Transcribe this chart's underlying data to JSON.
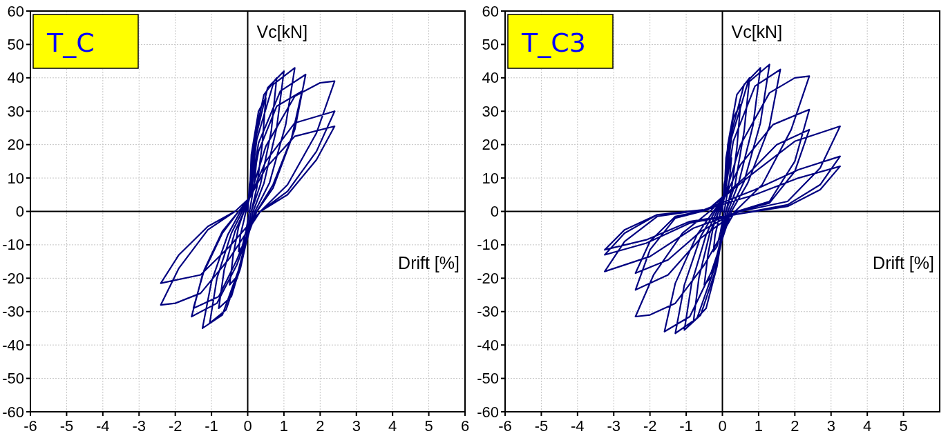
{
  "chart_data": [
    {
      "type": "line",
      "title": "T_C",
      "xlabel": "Drift [%]",
      "ylabel": "Vc[kN]",
      "xlim": [
        -6,
        6
      ],
      "ylim": [
        -60,
        60
      ],
      "xticks": [
        -6,
        -5,
        -4,
        -3,
        -2,
        -1,
        0,
        1,
        2,
        3,
        4,
        5,
        6
      ],
      "yticks": [
        -60,
        -50,
        -40,
        -30,
        -20,
        -10,
        0,
        10,
        20,
        30,
        40,
        50,
        60
      ],
      "grid": true,
      "series": [
        {
          "color": "#000080",
          "x": [
            0,
            0.05,
            0.15,
            0.25,
            0.2,
            0.1,
            0.05,
            -0.05,
            -0.15,
            -0.25,
            -0.2,
            -0.1,
            -0.05,
            0.05,
            0.1,
            0.3,
            0.5,
            0.4,
            0.25,
            0.1,
            -0.1,
            -0.3,
            -0.5,
            -0.4,
            -0.25,
            -0.1,
            0.05,
            0.15,
            0.45,
            0.8,
            0.65,
            0.35,
            0.1,
            -0.15,
            -0.45,
            -0.8,
            -0.65,
            -0.35,
            -0.1,
            0.05,
            0.2,
            0.55,
            1,
            0.8,
            0.45,
            0.15,
            -0.2,
            -0.6,
            -1.05,
            -0.85,
            -0.45,
            -0.15,
            0.05,
            0.25,
            0.7,
            1.3,
            1.05,
            0.6,
            0.2,
            -0.25,
            -0.7,
            -1.25,
            -1,
            -0.55,
            -0.2,
            0.05,
            0.3,
            0.9,
            1.6,
            1.3,
            0.7,
            0.25,
            -0.3,
            -0.85,
            -1.55,
            -1.25,
            -0.7,
            -0.25,
            0.05,
            0.3,
            0.8,
            1.5,
            1.2,
            0.7,
            0.25,
            -0.3,
            -0.8,
            -1.5,
            -1.2,
            -0.7,
            -0.25,
            0.05,
            0.5,
            1.3,
            2,
            2.4,
            1.9,
            1.1,
            0.35,
            -0.5,
            -1.3,
            -2,
            -2.4,
            -1.9,
            -1.1,
            -0.35,
            0.05,
            0.5,
            1.3,
            2.4,
            1.9,
            1.1,
            0.35,
            -0.5,
            -1.3,
            -2.4,
            -1.9,
            -1.1,
            -0.35,
            0.05,
            0.5,
            1.3,
            2.4,
            1.9,
            1.1,
            0.35
          ],
          "values": [
            0,
            8,
            14,
            16,
            10,
            3,
            0,
            -6,
            -10.5,
            -12,
            -7,
            -2.5,
            0,
            4,
            17,
            30,
            34,
            20,
            7,
            0,
            -11,
            -19.5,
            -22,
            -13,
            -4.5,
            0,
            4,
            20,
            35,
            40,
            24,
            8,
            0,
            -14.5,
            -25.5,
            -29,
            -17.5,
            -6,
            0,
            4,
            21,
            37,
            42,
            25,
            8.5,
            0,
            -17,
            -29.5,
            -33.5,
            -20,
            -6.5,
            0,
            4,
            21.5,
            38,
            43,
            26,
            8.5,
            0,
            -17.5,
            -31,
            -35,
            -21,
            -7,
            0,
            4,
            20.5,
            36,
            41,
            24.5,
            8,
            0,
            -16,
            -27.5,
            -31.5,
            -19,
            -6.5,
            0,
            4,
            18,
            31.5,
            36,
            21.5,
            7,
            0,
            -14.5,
            -25.5,
            -29,
            -17.5,
            -6,
            0,
            4,
            19.5,
            34.5,
            38.5,
            39,
            23.5,
            8,
            0,
            -14,
            -24.5,
            -27.5,
            -28,
            -17,
            -5.5,
            0,
            4,
            15,
            26.5,
            30,
            18,
            6,
            0,
            -10.5,
            -19,
            -21.5,
            -13,
            -4.5,
            0,
            4,
            13,
            22.5,
            25.5,
            15.5,
            5,
            0
          ]
        }
      ]
    },
    {
      "type": "line",
      "title": "T_C3",
      "xlabel": "Drift [%]",
      "ylabel": "Vc[kN]",
      "xlim": [
        -6,
        6
      ],
      "ylim": [
        -60,
        60
      ],
      "xticks": [
        -6,
        -5,
        -4,
        -3,
        -2,
        -1,
        0,
        1,
        2,
        3,
        4,
        5
      ],
      "yticks": [
        -60,
        -50,
        -40,
        -30,
        -20,
        -10,
        0,
        10,
        20,
        30,
        40,
        50,
        60
      ],
      "grid": true,
      "series": [
        {
          "color": "#000080",
          "x": [
            0,
            0.05,
            0.15,
            0.25,
            0.2,
            0.1,
            0.05,
            -0.05,
            -0.15,
            -0.25,
            -0.2,
            -0.1,
            -0.05,
            0.05,
            0.1,
            0.3,
            0.5,
            0.4,
            0.25,
            0.1,
            -0.1,
            -0.3,
            -0.5,
            -0.4,
            -0.25,
            -0.1,
            0.05,
            0.15,
            0.4,
            0.75,
            0.6,
            0.35,
            0.1,
            -0.15,
            -0.45,
            -0.8,
            -0.65,
            -0.35,
            -0.1,
            0.05,
            0.2,
            0.6,
            1.05,
            0.85,
            0.45,
            0.15,
            -0.2,
            -0.6,
            -1.05,
            -0.85,
            -0.45,
            -0.15,
            0.05,
            0.25,
            0.7,
            1.3,
            1.05,
            0.6,
            0.2,
            -0.25,
            -0.7,
            -1.3,
            -1.05,
            -0.6,
            -0.2,
            0.05,
            0.3,
            0.9,
            1.6,
            1.3,
            0.7,
            0.25,
            -0.3,
            -0.9,
            -1.6,
            -1.3,
            -0.7,
            -0.25,
            0.05,
            0.5,
            1.3,
            2,
            2.4,
            1.9,
            1.1,
            0.35,
            -0.5,
            -1.3,
            -2,
            -2.4,
            -1.9,
            -1.1,
            -0.35,
            0.05,
            0.5,
            1.4,
            2.4,
            2,
            1.3,
            0.4,
            -0.6,
            -1.5,
            -2.4,
            -2,
            -1.3,
            -0.4,
            0.6,
            1.5,
            2.4,
            2,
            1.3,
            0.4,
            -0.6,
            -1.5,
            -2.4,
            -2,
            -1.3,
            -0.4,
            0.8,
            2,
            3.25,
            2.7,
            1.8,
            0.5,
            -0.8,
            -2,
            -3.25,
            -2.7,
            -1.8,
            -0.5,
            0.9,
            2.1,
            3.25,
            2.7,
            1.8,
            -0.9,
            -2.1,
            -3.25,
            -2.7,
            -1.8,
            -0.5,
            0.9,
            2.1,
            3.25,
            2.7,
            1.8,
            -0.9,
            -2.1,
            -3.25,
            -2.7,
            -1.8,
            -0.5
          ],
          "values": [
            0,
            8,
            14,
            16,
            10,
            3,
            0,
            -6,
            -10.5,
            -12,
            -7,
            -2.5,
            0,
            4,
            16,
            28,
            32,
            19,
            6.5,
            0,
            -11,
            -19.5,
            -22,
            -13,
            -4.5,
            0,
            4,
            20,
            35,
            40,
            24,
            8,
            0,
            -16.5,
            -29,
            -33,
            -20,
            -6.5,
            0,
            4,
            21.5,
            38,
            43,
            26,
            8.5,
            0,
            -18,
            -31,
            -35.5,
            -21.5,
            -7,
            0,
            4,
            22,
            38.5,
            44,
            26.5,
            9,
            0,
            -18,
            -32,
            -36.5,
            -22,
            -7.5,
            0,
            4,
            21,
            37.5,
            42.5,
            25.5,
            8.5,
            0,
            -18,
            -31.5,
            -36,
            -21.5,
            -7,
            0,
            4,
            20,
            35.5,
            40,
            40.5,
            24.5,
            8,
            0,
            -16,
            -27.5,
            -31,
            -31.5,
            -19,
            -6.5,
            0,
            4,
            14,
            26,
            30.5,
            15,
            3,
            0,
            -8,
            -19,
            -23.5,
            -11.5,
            -2,
            0.5,
            10,
            20,
            24.5,
            12,
            2.5,
            0,
            -6,
            -14.5,
            -18.5,
            -9,
            -1.5,
            0.5,
            11,
            21,
            25.5,
            13,
            3,
            0,
            -5,
            -13.5,
            -18,
            -9,
            -1.5,
            0.5,
            6.5,
            12.5,
            16.5,
            8,
            2,
            -3.5,
            -9.5,
            -13,
            -6.5,
            -1,
            0.5,
            5,
            10,
            13.5,
            6.5,
            1.5,
            -3,
            -8.5,
            -11.5,
            -5.5,
            -1,
            0.5
          ]
        }
      ]
    }
  ]
}
